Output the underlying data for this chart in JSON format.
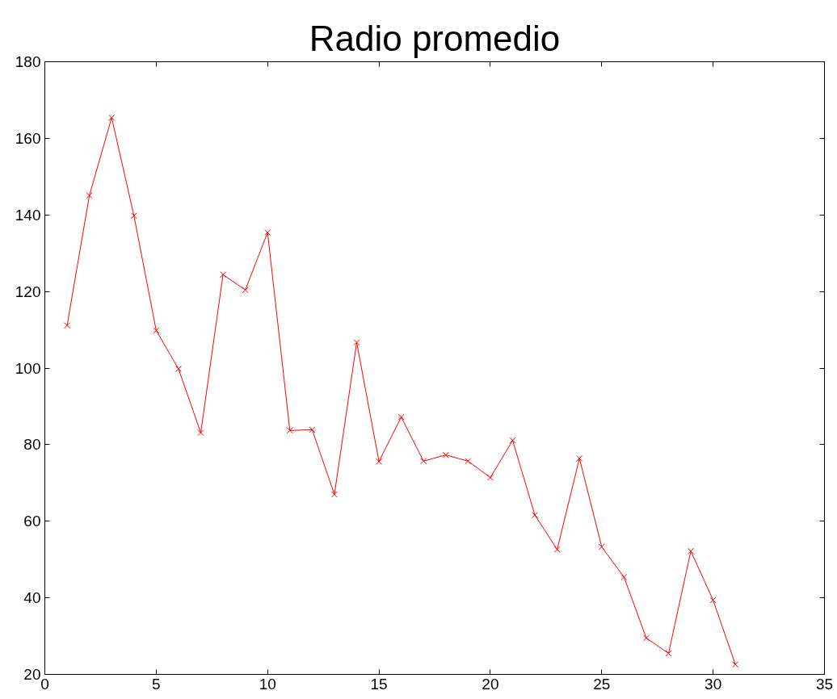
{
  "chart_data": {
    "type": "line",
    "title": "Radio promedio",
    "x": [
      1,
      2,
      3,
      4,
      5,
      6,
      7,
      8,
      9,
      10,
      11,
      12,
      13,
      14,
      15,
      16,
      17,
      18,
      19,
      20,
      21,
      22,
      23,
      24,
      25,
      26,
      27,
      28,
      29,
      30,
      31
    ],
    "series": [
      {
        "color": "#ff0000",
        "values": [
          111.1,
          145.1,
          165.4,
          139.8,
          109.8,
          99.8,
          83.1,
          124.4,
          120.4,
          135.4,
          83.7,
          83.9,
          67.0,
          106.7,
          75.6,
          87.2,
          75.7,
          77.3,
          75.7,
          71.4,
          81.1,
          61.6,
          52.6,
          76.4,
          53.3,
          45.4,
          29.5,
          25.5,
          52.2,
          39.4,
          22.6
        ]
      }
    ],
    "xlim": [
      0,
      35
    ],
    "xticks": [
      0,
      5,
      10,
      15,
      20,
      25,
      30,
      35
    ],
    "ylim": [
      20,
      180
    ],
    "yticks": [
      20,
      40,
      60,
      80,
      100,
      120,
      140,
      160,
      180
    ],
    "grid": false,
    "marker": "cross",
    "line_style": "solid"
  }
}
